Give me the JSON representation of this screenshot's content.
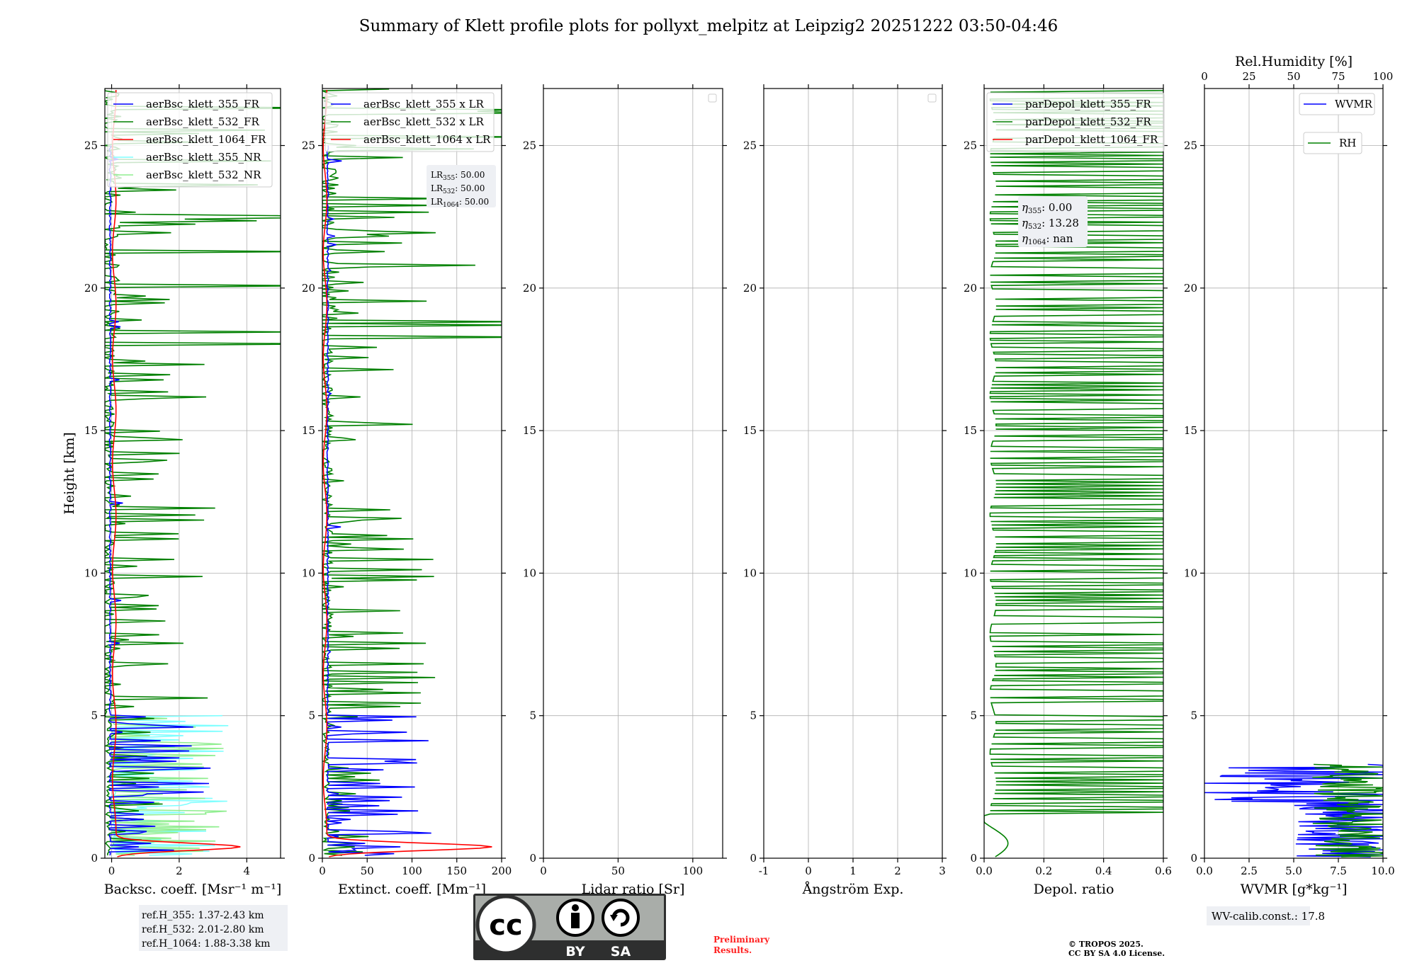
{
  "figure": {
    "title": "Summary of Klett profile plots for pollyxt_melpitz at Leipzig2 20251222 03:50-04:46",
    "preliminary": "Preliminary Results.",
    "copyright_line1": "© TROPOS 2025.",
    "copyright_line2": "CC BY SA 4.0 License.",
    "license_badge": {
      "cc": "cc",
      "by": "BY",
      "sa": "SA"
    }
  },
  "colors": {
    "blue": "#0000ff",
    "green": "#008000",
    "red": "#ff0000",
    "cyan": "#7fffff",
    "lightgreen": "#90ee90",
    "grid": "#b0b0b0"
  },
  "chart_data": [
    {
      "type": "line",
      "id": "backscatter",
      "xlabel": "Backsc. coeff. [Msr⁻¹ m⁻¹]",
      "ylabel": "Height [km]",
      "xlim": [
        -0.2,
        5
      ],
      "ylim": [
        0,
        27
      ],
      "xticks": [
        0,
        2,
        4
      ],
      "yticks": [
        0,
        5,
        10,
        15,
        20,
        25
      ],
      "grid": true,
      "legend_position": "top",
      "series": [
        {
          "name": "aerBsc_klett_355_FR",
          "color": "blue",
          "profile": "noisy_low"
        },
        {
          "name": "aerBsc_klett_532_FR",
          "color": "green",
          "profile": "noisy_high"
        },
        {
          "name": "aerBsc_klett_1064_FR",
          "color": "red",
          "profile": "smooth_peak",
          "peak_height_km": 0.4,
          "peak_value": 3.7
        },
        {
          "name": "aerBsc_klett_355_NR",
          "color": "cyan",
          "profile": "noisy_nr",
          "max_height_km": 5
        },
        {
          "name": "aerBsc_klett_532_NR",
          "color": "lightgreen",
          "profile": "noisy_nr",
          "max_height_km": 5
        }
      ],
      "reference_heights": [
        "ref.H_355: 1.37-2.43 km",
        "ref.H_532: 2.01-2.80 km",
        "ref.H_1064: 1.88-3.38 km"
      ]
    },
    {
      "type": "line",
      "id": "extinction",
      "xlabel": "Extinct. coeff. [Mm⁻¹]",
      "xlim": [
        0,
        200
      ],
      "ylim": [
        0,
        27
      ],
      "xticks": [
        0,
        50,
        100,
        150,
        200
      ],
      "yticks": [
        0,
        5,
        10,
        15,
        20,
        25
      ],
      "grid": true,
      "series": [
        {
          "name": "aerBsc_klett_355 x LR",
          "color": "blue",
          "profile": "noisy_low"
        },
        {
          "name": "aerBsc_klett_532 x LR",
          "color": "green",
          "profile": "noisy_high"
        },
        {
          "name": "aerBsc_klett_1064 x LR",
          "color": "red",
          "profile": "smooth_peak",
          "peak_height_km": 0.4,
          "peak_value": 185
        }
      ],
      "lidar_ratios": [
        {
          "label": "LR",
          "sub": "355",
          "value": ": 50.00"
        },
        {
          "label": "LR",
          "sub": "532",
          "value": ": 50.00"
        },
        {
          "label": "LR",
          "sub": "1064",
          "value": ": 50.00"
        }
      ]
    },
    {
      "type": "line",
      "id": "lidar_ratio",
      "xlabel": "Lidar ratio [Sr]",
      "xlim": [
        0,
        120
      ],
      "ylim": [
        0,
        27
      ],
      "xticks": [
        0,
        50,
        100
      ],
      "yticks": [
        0,
        5,
        10,
        15,
        20,
        25
      ],
      "grid": true,
      "series": []
    },
    {
      "type": "line",
      "id": "angstrom",
      "xlabel": "Ångström Exp.",
      "xlim": [
        -1,
        3
      ],
      "ylim": [
        0,
        27
      ],
      "xticks": [
        -1,
        0,
        1,
        2,
        3
      ],
      "yticks": [
        0,
        5,
        10,
        15,
        20,
        25
      ],
      "grid": true,
      "series": []
    },
    {
      "type": "line",
      "id": "depolarization",
      "xlabel": "Depol. ratio",
      "xlim": [
        0,
        0.6
      ],
      "ylim": [
        0,
        27
      ],
      "xticks": [
        0.0,
        0.2,
        0.4,
        0.6
      ],
      "yticks": [
        0,
        5,
        10,
        15,
        20,
        25
      ],
      "grid": true,
      "series": [
        {
          "name": "parDepol_klett_355_FR",
          "color": "blue"
        },
        {
          "name": "parDepol_klett_532_FR",
          "color": "green"
        },
        {
          "name": "parDepol_klett_1064_FR",
          "color": "red"
        }
      ],
      "eta": [
        {
          "label": "η",
          "sub": "355",
          "value": ": 0.00"
        },
        {
          "label": "η",
          "sub": "532",
          "value": ": 13.28"
        },
        {
          "label": "η",
          "sub": "1064",
          "value": ": nan"
        }
      ]
    },
    {
      "type": "line",
      "id": "water_vapor",
      "xlabel": "WVMR [g*kg⁻¹]",
      "top_xlabel": "Rel.Humidity [%]",
      "xlim": [
        0,
        10
      ],
      "top_xlim": [
        0,
        100
      ],
      "ylim": [
        0,
        27
      ],
      "xticks": [
        0.0,
        2.5,
        5.0,
        7.5,
        10.0
      ],
      "top_xticks": [
        0,
        25,
        50,
        75,
        100
      ],
      "yticks": [
        0,
        5,
        10,
        15,
        20,
        25
      ],
      "grid": true,
      "series": [
        {
          "name": "WVMR",
          "color": "blue"
        },
        {
          "name": "RH",
          "color": "green"
        }
      ],
      "calibration": "WV-calib.const.: 17.8"
    }
  ]
}
